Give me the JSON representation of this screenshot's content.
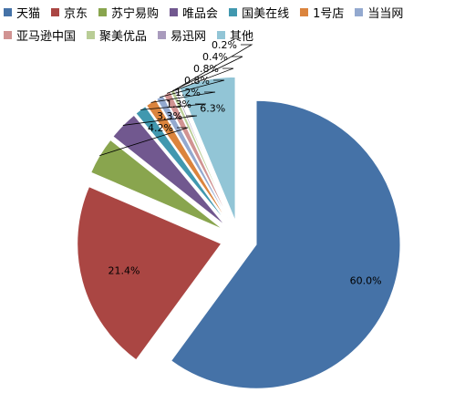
{
  "chart_data": {
    "type": "pie",
    "categories": [
      "天猫",
      "京东",
      "苏宁易购",
      "唯品会",
      "国美在线",
      "1号店",
      "当当网",
      "亚马逊中国",
      "聚美优品",
      "易迅网",
      "其他"
    ],
    "values": [
      60.0,
      21.4,
      4.2,
      3.3,
      1.3,
      1.2,
      0.8,
      0.8,
      0.4,
      0.2,
      6.3
    ],
    "labels": [
      "60.0%",
      "21.4%",
      "4.2%",
      "3.3%",
      "1.3%",
      "1.2%",
      "0.8%",
      "0.8%",
      "0.4%",
      "0.2%",
      "6.3%"
    ],
    "colors": [
      "#4572A7",
      "#AA4643",
      "#89A54E",
      "#71588F",
      "#4198AF",
      "#DB843D",
      "#93A9CF",
      "#D19392",
      "#B9CD96",
      "#A99BBD",
      "#92C5D6"
    ],
    "legend_placement": "top",
    "exploded": true,
    "title": ""
  }
}
